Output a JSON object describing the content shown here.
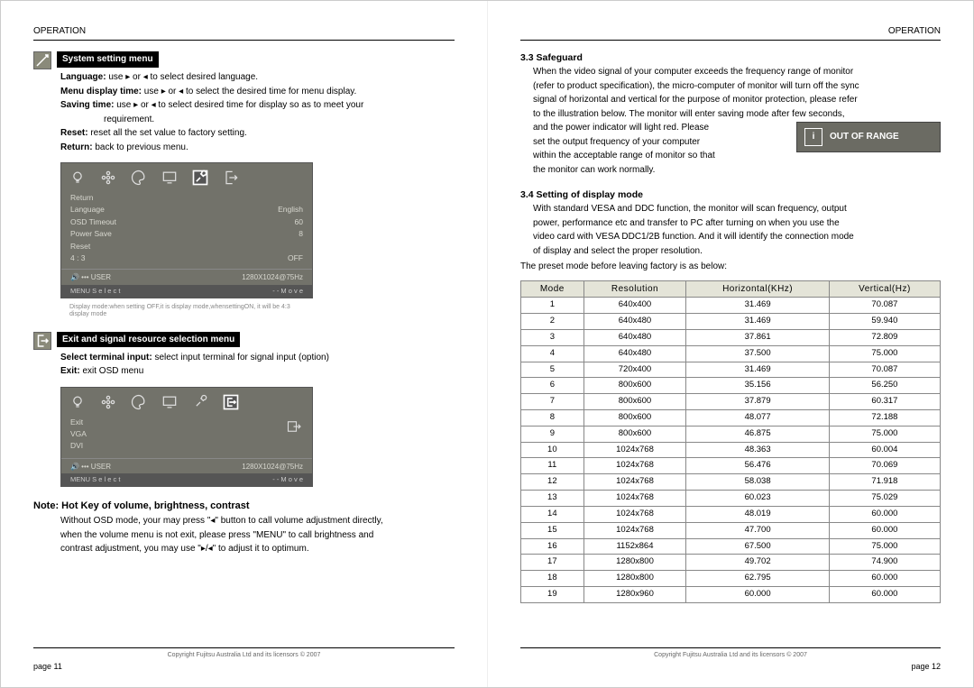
{
  "header": {
    "left": "OPERATION",
    "right": "OPERATION"
  },
  "footer": {
    "copyright": "Copyright Fujitsu Australia Ltd and its licensors © 2007",
    "page_left": "page 11",
    "page_right": "page 12"
  },
  "left": {
    "sys_title": "System setting menu",
    "sys_lines": [
      {
        "b": "Language:",
        "t": " use ▸ or ◂ to select desired language."
      },
      {
        "b": "Menu display time:",
        "t": " use ▸ or ◂ to select the desired time for menu display."
      },
      {
        "b": "Saving time:",
        "t": " use ▸ or ◂ to select desired time for display so as to meet your"
      }
    ],
    "sys_cont": "requirement.",
    "sys_reset_b": "Reset:",
    "sys_reset_t": " reset all the set value to factory setting.",
    "sys_return_b": "Return:",
    "sys_return_t": " back to previous menu.",
    "osd1": {
      "rows": [
        [
          "Return",
          ""
        ],
        [
          "Language",
          "English"
        ],
        [
          "OSD Timeout",
          "60"
        ],
        [
          "Power Save",
          "8"
        ],
        [
          "Reset",
          ""
        ],
        [
          "4 : 3",
          "OFF"
        ]
      ],
      "status_left": "🔊  •••  USER",
      "status_right": "1280X1024@75Hz",
      "f_left": "MENU  S e l e c t",
      "f_right": "- -   M o v e",
      "note": "Display mode:when setting OFF,it is display mode,whensettingON, it will be 4:3 display mode"
    },
    "exit_title": "Exit and signal resource selection menu",
    "exit_line_b": "Select terminal input:",
    "exit_line_t": " select input terminal for signal input (option)",
    "exit_exit_b": "Exit:",
    "exit_exit_t": " exit OSD menu",
    "osd2": {
      "rows": [
        [
          "Exit",
          ""
        ],
        [
          "VGA",
          ""
        ],
        [
          "DVI",
          ""
        ]
      ],
      "status_left": "🔊  •••  USER",
      "status_right": "1280X1024@75Hz",
      "f_left": "MENU  S e l e c t",
      "f_right": "- -   M o v e"
    },
    "note_title": "Note: Hot Key of volume, brightness, contrast",
    "note_body": [
      "Without OSD mode, your may press \"◂\" button to call volume adjustment directly,",
      "when the volume menu is not exit, please press \"MENU\" to call brightness and",
      "contrast adjustment, you may use \"▸/◂\" to adjust it to optimum."
    ]
  },
  "right": {
    "safeguard_title": "3.3 Safeguard",
    "safeguard_body": [
      "When the video signal of your computer exceeds the frequency range of monitor",
      "(refer to product specification), the micro-computer of monitor will turn off the sync",
      "signal of horizontal and vertical for the purpose of monitor protection, please refer",
      "to the illustration below. The monitor will enter saving mode after few seconds,",
      "and the power indicator will light red. Please",
      "set the output frequency of your computer",
      "within the acceptable range of monitor so that",
      "the monitor can work normally."
    ],
    "oor_label": "OUT OF RANGE",
    "mode_title": "3.4 Setting of display mode",
    "mode_body": [
      "With standard VESA and DDC function, the monitor will scan frequency, output",
      "power, performance etc and transfer to PC after turning on when you use the",
      "video card with VESA DDC1/2B function. And it will identify the connection mode",
      "of display and select the proper resolution."
    ],
    "mode_preset": "The preset mode before leaving factory is as below:",
    "table": {
      "head": [
        "Mode",
        "Resolution",
        "Horizontal(KHz)",
        "Vertical(Hz)"
      ],
      "rows": [
        [
          "1",
          "640x400",
          "31.469",
          "70.087"
        ],
        [
          "2",
          "640x480",
          "31.469",
          "59.940"
        ],
        [
          "3",
          "640x480",
          "37.861",
          "72.809"
        ],
        [
          "4",
          "640x480",
          "37.500",
          "75.000"
        ],
        [
          "5",
          "720x400",
          "31.469",
          "70.087"
        ],
        [
          "6",
          "800x600",
          "35.156",
          "56.250"
        ],
        [
          "7",
          "800x600",
          "37.879",
          "60.317"
        ],
        [
          "8",
          "800x600",
          "48.077",
          "72.188"
        ],
        [
          "9",
          "800x600",
          "46.875",
          "75.000"
        ],
        [
          "10",
          "1024x768",
          "48.363",
          "60.004"
        ],
        [
          "11",
          "1024x768",
          "56.476",
          "70.069"
        ],
        [
          "12",
          "1024x768",
          "58.038",
          "71.918"
        ],
        [
          "13",
          "1024x768",
          "60.023",
          "75.029"
        ],
        [
          "14",
          "1024x768",
          "48.019",
          "60.000"
        ],
        [
          "15",
          "1024x768",
          "47.700",
          "60.000"
        ],
        [
          "16",
          "1152x864",
          "67.500",
          "75.000"
        ],
        [
          "17",
          "1280x800",
          "49.702",
          "74.900"
        ],
        [
          "18",
          "1280x800",
          "62.795",
          "60.000"
        ],
        [
          "19",
          "1280x960",
          "60.000",
          "60.000"
        ]
      ]
    }
  }
}
